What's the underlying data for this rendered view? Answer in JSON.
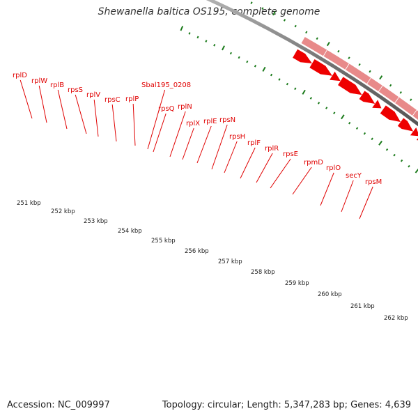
{
  "title": "Shewanella baltica OS195, complete genome",
  "accession": "Accession: NC_009997",
  "summary": "Topology: circular; Length: 5,347,283 bp; Genes: 4,639",
  "colors": {
    "gene": "#ee0000",
    "gene_band": "#e88a8a",
    "highlight_green": "#a8f23c",
    "highlight_orange": "#f08a00",
    "tick": "#1a7a1a",
    "backbone": "#7a7a7a",
    "label": "#e00000"
  },
  "gene_labels": [
    "rplD",
    "rplW",
    "rplB",
    "rpsS",
    "rplV",
    "rpsC",
    "rplP",
    "Sbal195_0208",
    "rpsQ",
    "rplN",
    "rplX",
    "rplE",
    "rpsN",
    "rpsH",
    "rplF",
    "rplR",
    "rpsE",
    "rpmD",
    "rplO",
    "secY",
    "rpsM"
  ],
  "kbp_labels": [
    "251 kbp",
    "252 kbp",
    "253 kbp",
    "254 kbp",
    "255 kbp",
    "256 kbp",
    "257 kbp",
    "258 kbp",
    "259 kbp",
    "260 kbp",
    "261 kbp",
    "262 kbp"
  ]
}
